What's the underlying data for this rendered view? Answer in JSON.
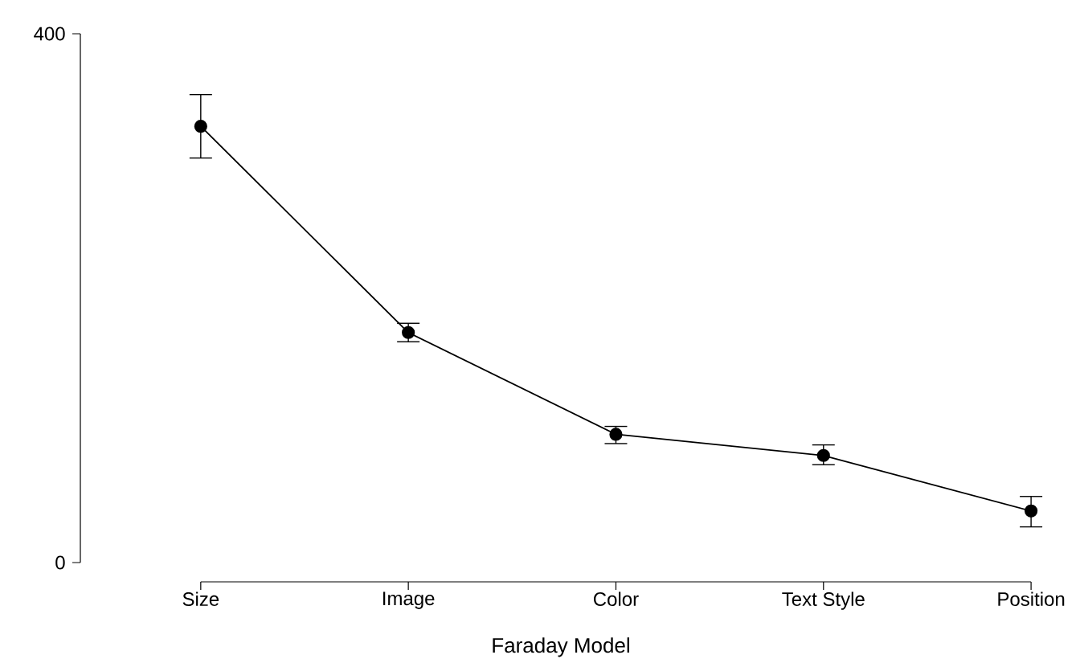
{
  "chart_data": {
    "type": "line",
    "xlabel": "Faraday Model",
    "categories": [
      "Size",
      "Image",
      "Color",
      "Text Style",
      "Position"
    ],
    "series": [
      {
        "color": "#000000",
        "values": [
          330,
          174,
          97,
          81,
          39
        ],
        "errors": [
          [
            306,
            354
          ],
          [
            167,
            181
          ],
          [
            90,
            103
          ],
          [
            74,
            89
          ],
          [
            27,
            50
          ]
        ]
      }
    ],
    "ylim": [
      0,
      400
    ],
    "yticks": [
      0,
      400
    ],
    "marker": "circle",
    "line_style": "solid",
    "grid": false
  }
}
